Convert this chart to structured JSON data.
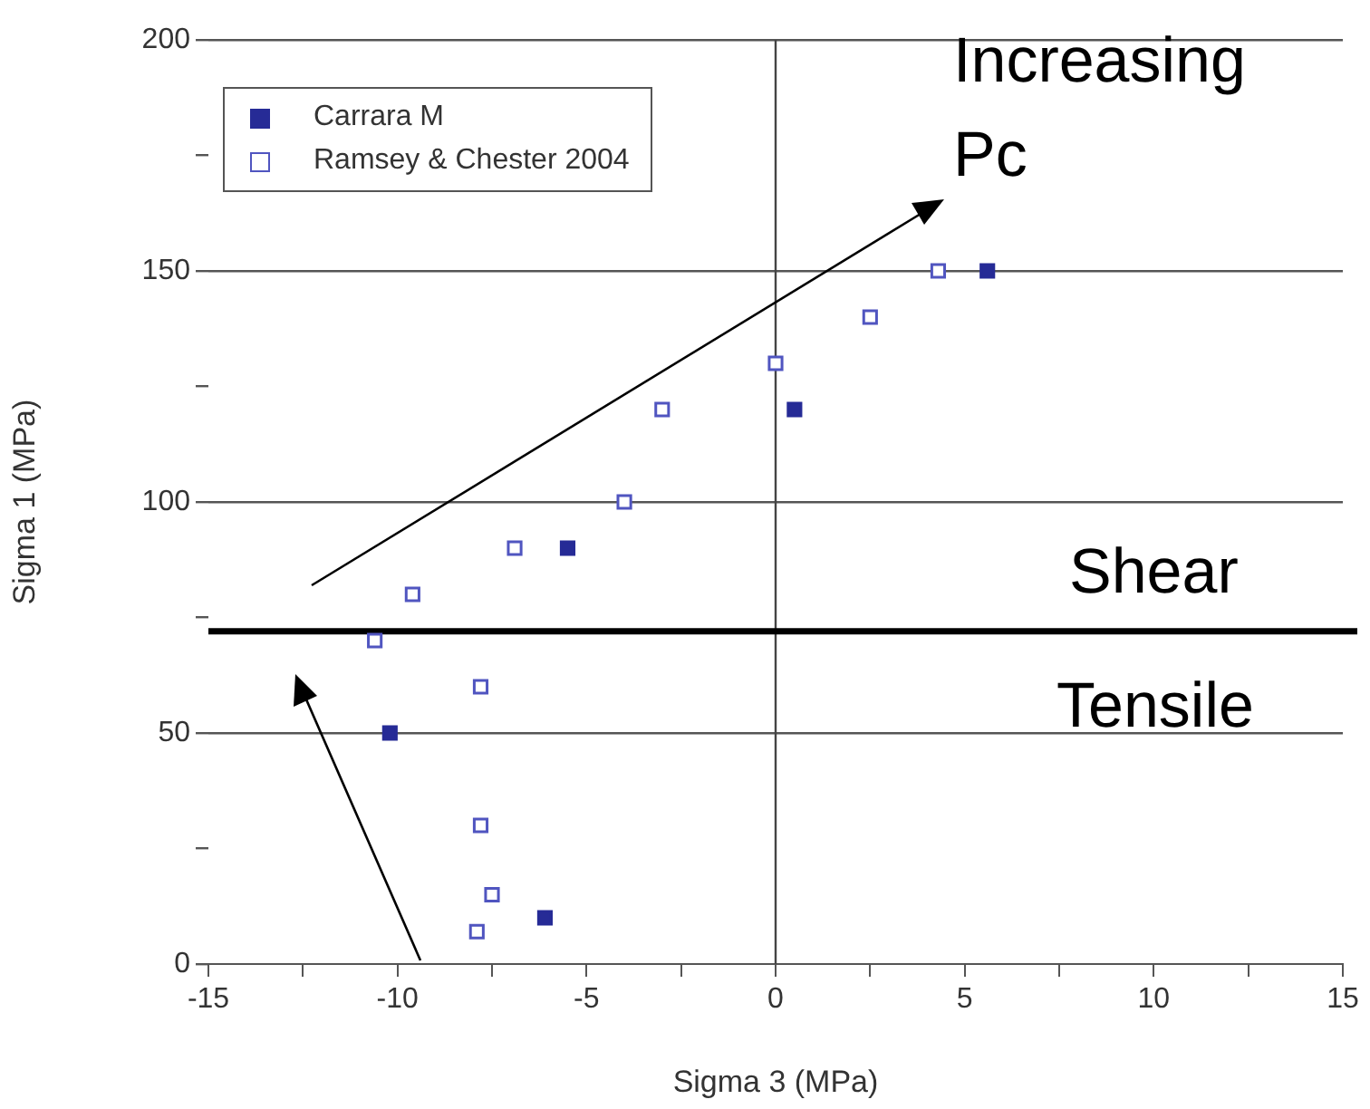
{
  "chart_data": {
    "type": "scatter",
    "xlabel": "Sigma 3 (MPa)",
    "ylabel": "Sigma 1 (MPa)",
    "series": [
      {
        "name": "Carrara M",
        "color": "#262b96",
        "x": [
          5.6,
          0.5,
          -5.5,
          -10.2,
          -6.1
        ],
        "values": [
          150,
          120,
          90,
          50,
          10
        ]
      },
      {
        "name": "Ramsey & Chester 2004",
        "color": "#5055c0",
        "x": [
          4.3,
          2.5,
          0,
          -3,
          -4,
          -6.9,
          -9.6,
          -10.6,
          -7.8,
          -7.8,
          -7.5,
          -7.9
        ],
        "values": [
          150,
          140,
          130,
          120,
          100,
          90,
          80,
          70,
          60,
          30,
          15,
          7
        ]
      }
    ],
    "xlim": [
      -15,
      15
    ],
    "xticks": [
      -15,
      {
        "value": -12.5,
        "label": null
      },
      -10,
      {
        "value": -7.5,
        "label": null
      },
      -5,
      {
        "value": -2.5,
        "label": null
      },
      0,
      {
        "value": 2.5,
        "label": null
      },
      5,
      {
        "value": 7.5,
        "label": null
      },
      10,
      {
        "value": 12.5,
        "label": null
      },
      15
    ],
    "ylim": [
      0,
      200
    ],
    "yticks": [
      0,
      {
        "value": 25,
        "label": null
      },
      50,
      {
        "value": 75,
        "label": null
      },
      100,
      {
        "value": 125,
        "label": null
      },
      150,
      {
        "value": 175,
        "label": null
      },
      200
    ],
    "grid": "y",
    "marker": "square",
    "legend": "top left",
    "ref_lines": [
      {
        "axis": "x",
        "value": 0,
        "color": "#444444"
      },
      {
        "axis": "y",
        "value": 72,
        "color": "#000000"
      }
    ],
    "annotations": [
      "Increasing Pc",
      "Shear",
      "Tensile"
    ]
  }
}
